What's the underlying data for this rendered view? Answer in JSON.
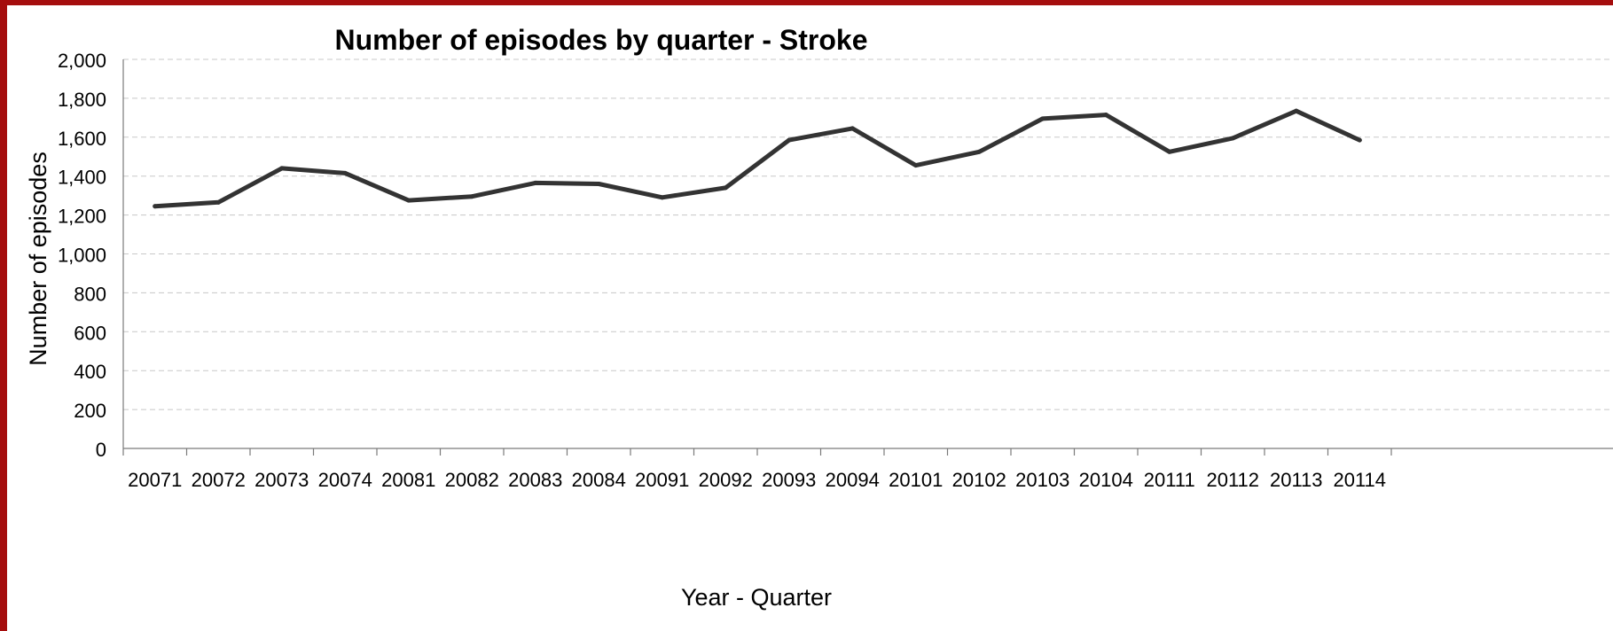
{
  "chart_data": {
    "type": "line",
    "title": "Number of episodes by quarter - Stroke",
    "xlabel": "Year - Quarter",
    "ylabel": "Number of episodes",
    "ylim": [
      0,
      2000
    ],
    "yticks": [
      0,
      200,
      400,
      600,
      800,
      1000,
      1200,
      1400,
      1600,
      1800,
      2000
    ],
    "ytick_labels": [
      "0",
      "200",
      "400",
      "600",
      "800",
      "1,000",
      "1,200",
      "1,400",
      "1,600",
      "1,800",
      "2,000"
    ],
    "grid": true,
    "categories": [
      "20071",
      "20072",
      "20073",
      "20074",
      "20081",
      "20082",
      "20083",
      "20084",
      "20091",
      "20092",
      "20093",
      "20094",
      "20101",
      "20102",
      "20103",
      "20104",
      "20111",
      "20112",
      "20113",
      "20114"
    ],
    "series": [
      {
        "values": [
          1245,
          1265,
          1440,
          1415,
          1275,
          1295,
          1365,
          1360,
          1290,
          1340,
          1585,
          1645,
          1455,
          1525,
          1695,
          1715,
          1525,
          1595,
          1735,
          1585
        ],
        "color": "#333333"
      }
    ]
  },
  "colors": {
    "frame": "#a50d0d",
    "background": "#ffffff",
    "line": "#333333",
    "grid": "#c8c8c8"
  }
}
